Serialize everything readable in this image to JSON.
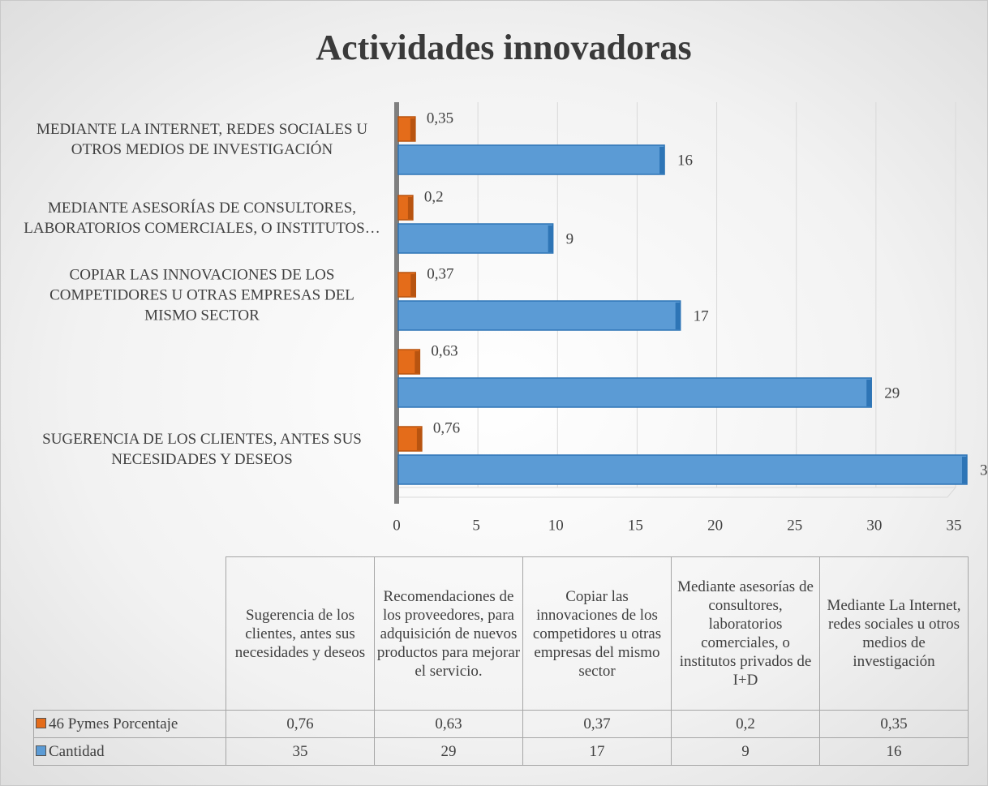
{
  "chart_data": {
    "type": "bar",
    "orientation": "horizontal",
    "title": "Actividades innovadoras",
    "categories": [
      "SUGERENCIA DE LOS CLIENTES, ANTES SUS NECESIDADES Y DESEOS",
      null,
      "COPIAR LAS INNOVACIONES DE LOS COMPETIDORES U OTRAS EMPRESAS DEL MISMO SECTOR",
      "MEDIANTE ASESORÍAS DE CONSULTORES, LABORATORIOS COMERCIALES, O INSTITUTOS…",
      "MEDIANTE LA INTERNET, REDES SOCIALES U OTROS MEDIOS DE INVESTIGACIÓN"
    ],
    "table_headers": [
      "Sugerencia de los clientes, antes sus necesidades y deseos",
      "Recomendaciones de los proveedores, para adquisición de nuevos productos para mejorar el servicio.",
      "Copiar las innovaciones de los competidores u otras empresas del mismo sector",
      "Mediante asesorías de consultores, laboratorios comerciales, o institutos privados de I+D",
      "Mediante La Internet, redes sociales u otros medios de investigación"
    ],
    "series": [
      {
        "name": "46 Pymes Porcentaje",
        "color": "#e46c1a",
        "values": [
          0.76,
          0.63,
          0.37,
          0.2,
          0.35
        ],
        "value_labels": [
          "0,76",
          "0,63",
          "0,37",
          "0,2",
          "0,35"
        ]
      },
      {
        "name": "Cantidad",
        "color": "#5b9bd5",
        "values": [
          35,
          29,
          17,
          9,
          16
        ]
      }
    ],
    "xlim": [
      0,
      35
    ],
    "xticks": [
      0,
      5,
      10,
      15,
      20,
      25,
      30,
      35
    ],
    "grid": true
  }
}
